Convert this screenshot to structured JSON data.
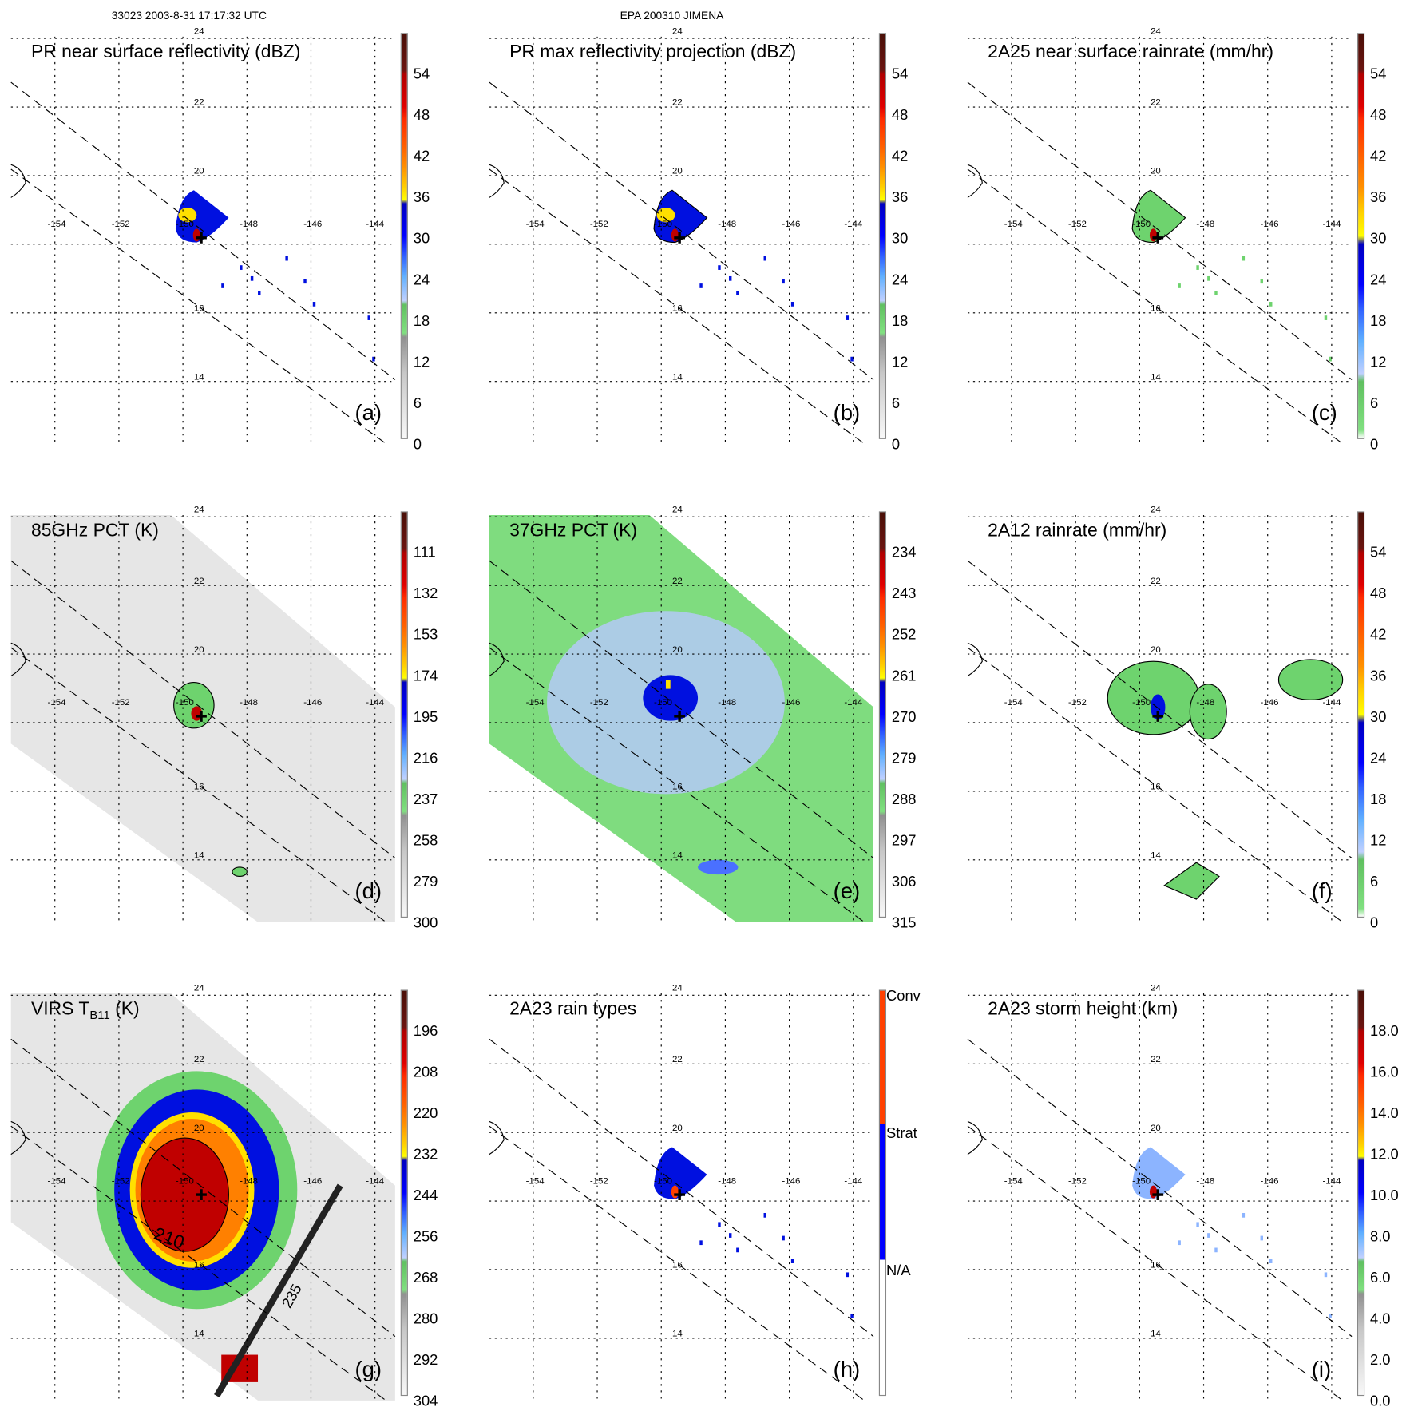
{
  "header": {
    "left": "33023 2003-8-31 17:17:32 UTC",
    "center": "EPA 200310 JIMENA"
  },
  "axes": {
    "lat_labels": [
      "24",
      "22",
      "20",
      "16",
      "14"
    ],
    "lon_labels": [
      "-154",
      "-152",
      "-150",
      "-148",
      "-146",
      "-144"
    ]
  },
  "colors": {
    "grid": "#000000",
    "swath_gray": "#e6e6e6",
    "swath_green": "#7fdc7f",
    "storm_red": "#c00000",
    "storm_orange": "#ff8000",
    "storm_yellow": "#ffe000",
    "storm_blue": "#0010e0",
    "storm_lightblue": "#8cb4ff",
    "storm_green": "#6ed36e"
  },
  "chart_data": [
    {
      "type": "heatmap",
      "id": "a",
      "title": "PR near surface reflectivity (dBZ)",
      "panel_label": "(a)",
      "colorbar_ticks": [
        "54",
        "48",
        "42",
        "36",
        "30",
        "24",
        "18",
        "12",
        "6",
        "0"
      ],
      "scale": "standard",
      "background": "none"
    },
    {
      "type": "heatmap",
      "id": "b",
      "title": "PR max reflectivity projection (dBZ)",
      "panel_label": "(b)",
      "colorbar_ticks": [
        "54",
        "48",
        "42",
        "36",
        "30",
        "24",
        "18",
        "12",
        "6",
        "0"
      ],
      "scale": "standard",
      "background": "none"
    },
    {
      "type": "heatmap",
      "id": "c",
      "title": "2A25 near surface rainrate (mm/hr)",
      "panel_label": "(c)",
      "colorbar_ticks": [
        "54",
        "48",
        "42",
        "36",
        "30",
        "24",
        "18",
        "12",
        "6",
        "0"
      ],
      "scale": "rain",
      "background": "none"
    },
    {
      "type": "heatmap",
      "id": "d",
      "title": "85GHz PCT (K)",
      "panel_label": "(d)",
      "colorbar_ticks": [
        "111",
        "132",
        "153",
        "174",
        "195",
        "216",
        "237",
        "258",
        "279",
        "300"
      ],
      "scale": "standard",
      "background": "gray"
    },
    {
      "type": "heatmap",
      "id": "e",
      "title": "37GHz PCT (K)",
      "panel_label": "(e)",
      "colorbar_ticks": [
        "234",
        "243",
        "252",
        "261",
        "270",
        "279",
        "288",
        "297",
        "306",
        "315"
      ],
      "scale": "standard",
      "background": "green"
    },
    {
      "type": "heatmap",
      "id": "f",
      "title": "2A12 rainrate (mm/hr)",
      "panel_label": "(f)",
      "colorbar_ticks": [
        "54",
        "48",
        "42",
        "36",
        "30",
        "24",
        "18",
        "12",
        "6",
        "0"
      ],
      "scale": "rain",
      "background": "none"
    },
    {
      "type": "heatmap",
      "id": "g",
      "title": "VIRS T",
      "title_sub": "B11",
      "title_suffix": " (K)",
      "panel_label": "(g)",
      "colorbar_ticks": [
        "196",
        "208",
        "220",
        "232",
        "244",
        "256",
        "268",
        "280",
        "292",
        "304"
      ],
      "scale": "standard",
      "background": "gray",
      "contour_labels": [
        "210",
        "235"
      ]
    },
    {
      "type": "heatmap",
      "id": "h",
      "title": "2A23 rain types",
      "panel_label": "(h)",
      "colorbar_ticks": [
        "Conv",
        "Strat",
        "N/A"
      ],
      "scale": "types",
      "background": "none"
    },
    {
      "type": "heatmap",
      "id": "i",
      "title": "2A23 storm height (km)",
      "panel_label": "(i)",
      "colorbar_ticks": [
        "18.0",
        "16.0",
        "14.0",
        "12.0",
        "10.0",
        "8.0",
        "6.0",
        "4.0",
        "2.0",
        "0.0"
      ],
      "scale": "standard",
      "background": "none"
    }
  ]
}
